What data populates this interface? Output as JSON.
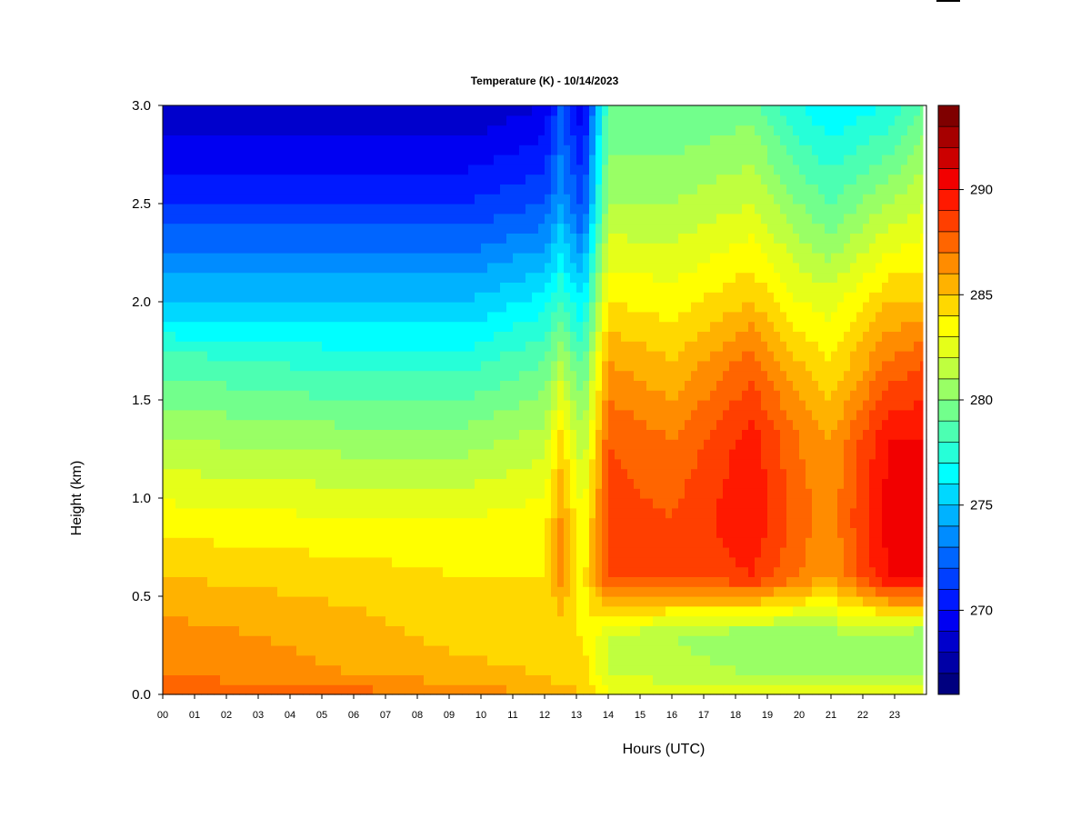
{
  "chart_data": {
    "type": "heatmap",
    "title": "Temperature (K) - 10/14/2023",
    "xlabel": "Hours (UTC)",
    "ylabel": "Height (km)",
    "xlim": [
      0,
      24
    ],
    "ylim": [
      0,
      3.0
    ],
    "x_ticks": [
      "00",
      "01",
      "02",
      "03",
      "04",
      "05",
      "06",
      "07",
      "08",
      "09",
      "10",
      "11",
      "12",
      "13",
      "14",
      "15",
      "16",
      "17",
      "18",
      "19",
      "20",
      "21",
      "22",
      "23"
    ],
    "y_ticks": [
      "0.0",
      "0.5",
      "1.0",
      "1.5",
      "2.0",
      "2.5",
      "3.0"
    ],
    "colorbar": {
      "min": 266,
      "max": 294,
      "levels": 28,
      "ticks": [
        "270",
        "275",
        "280",
        "285",
        "290"
      ],
      "colors": [
        "#00007f",
        "#0000a6",
        "#0000cc",
        "#0000f2",
        "#0019ff",
        "#003fff",
        "#0065ff",
        "#008cff",
        "#00b2ff",
        "#00d8ff",
        "#00ffff",
        "#26ffd8",
        "#4cffb2",
        "#72ff8c",
        "#99ff65",
        "#bfff3f",
        "#e5ff19",
        "#ffff00",
        "#ffd800",
        "#ffb200",
        "#ff8c00",
        "#ff6500",
        "#ff3f00",
        "#ff1900",
        "#f20000",
        "#cc0000",
        "#a60000",
        "#7f0000"
      ]
    },
    "profiles": [
      {
        "hour": 0,
        "heights": [
          0,
          0.1,
          0.3,
          0.6,
          0.9,
          1.3,
          1.7,
          2.0,
          2.5,
          3.0
        ],
        "temperature": [
          288,
          287,
          286.5,
          285,
          283.5,
          281,
          278.5,
          275,
          271,
          268
        ]
      },
      {
        "hour": 6,
        "heights": [
          0,
          0.1,
          0.3,
          0.6,
          0.9,
          1.3,
          1.7,
          2.0,
          2.5,
          3.0
        ],
        "temperature": [
          287.5,
          286,
          285.5,
          284.5,
          283,
          280.5,
          277.5,
          275,
          271,
          268
        ]
      },
      {
        "hour": 9.5,
        "heights": [
          0,
          0.1,
          0.3,
          0.6,
          0.9,
          1.3,
          1.7,
          2.0,
          2.5,
          3.0
        ],
        "temperature": [
          286.5,
          285.5,
          284.5,
          284,
          283,
          280.5,
          277.5,
          275,
          271,
          268
        ]
      },
      {
        "hour": 12,
        "heights": [
          0,
          0.1,
          0.3,
          0.6,
          0.9,
          1.3,
          1.7,
          2.0,
          2.5,
          3.0
        ],
        "temperature": [
          286,
          285,
          284,
          284,
          283.5,
          281.5,
          279,
          276.5,
          272,
          269
        ]
      },
      {
        "hour": 12.5,
        "heights": [
          0,
          0.1,
          0.3,
          0.6,
          0.9,
          1.3,
          1.7,
          2.0,
          2.5,
          3.0
        ],
        "temperature": [
          285.5,
          284.5,
          284,
          286.5,
          286,
          284.5,
          281,
          278,
          274,
          272
        ]
      },
      {
        "hour": 13.2,
        "heights": [
          0,
          0.1,
          0.3,
          0.6,
          0.9,
          1.3,
          1.7,
          2.0,
          2.5,
          3.0
        ],
        "temperature": [
          285,
          284.5,
          284,
          283.5,
          283,
          281,
          278.5,
          276,
          271.5,
          269
        ]
      },
      {
        "hour": 14,
        "heights": [
          0,
          0.1,
          0.3,
          0.6,
          0.9,
          1.3,
          1.7,
          2.0,
          2.5,
          3.0
        ],
        "temperature": [
          283,
          282,
          282,
          288,
          288.5,
          288,
          286,
          284,
          281,
          279
        ]
      },
      {
        "hour": 16,
        "heights": [
          0,
          0.1,
          0.3,
          0.6,
          0.9,
          1.3,
          1.7,
          2.0,
          2.5,
          3.0
        ],
        "temperature": [
          283,
          281.5,
          281,
          288,
          288,
          287,
          285,
          283.5,
          281,
          279
        ]
      },
      {
        "hour": 18.5,
        "heights": [
          0,
          0.1,
          0.3,
          0.6,
          0.9,
          1.3,
          1.7,
          2.0,
          2.5,
          3.0
        ],
        "temperature": [
          282.5,
          281,
          280,
          289,
          290,
          289.5,
          287.5,
          285,
          282,
          279.5
        ]
      },
      {
        "hour": 20,
        "heights": [
          0,
          0.1,
          0.3,
          0.6,
          0.9,
          1.3,
          1.7,
          2.0,
          2.5,
          3.0
        ],
        "temperature": [
          282.5,
          281,
          280,
          287,
          287.5,
          287,
          285,
          283,
          280,
          277
        ]
      },
      {
        "hour": 21,
        "heights": [
          0,
          0.1,
          0.3,
          0.6,
          0.9,
          1.3,
          1.7,
          2.0,
          2.5,
          3.0
        ],
        "temperature": [
          282.5,
          281,
          280.5,
          286,
          286.5,
          286,
          284,
          282.5,
          279,
          276
        ]
      },
      {
        "hour": 22.8,
        "heights": [
          0,
          0.1,
          0.3,
          0.6,
          0.9,
          1.3,
          1.7,
          2.0,
          2.5,
          3.0
        ],
        "temperature": [
          282.5,
          281,
          280.5,
          290,
          290.5,
          290,
          287,
          285,
          281,
          277
        ]
      },
      {
        "hour": 23.9,
        "heights": [
          0,
          0.1,
          0.3,
          0.6,
          0.9,
          1.3,
          1.7,
          2.0,
          2.5,
          3.0
        ],
        "temperature": [
          282.5,
          281,
          280,
          290.5,
          291,
          290,
          288,
          285,
          282,
          279
        ]
      }
    ]
  }
}
